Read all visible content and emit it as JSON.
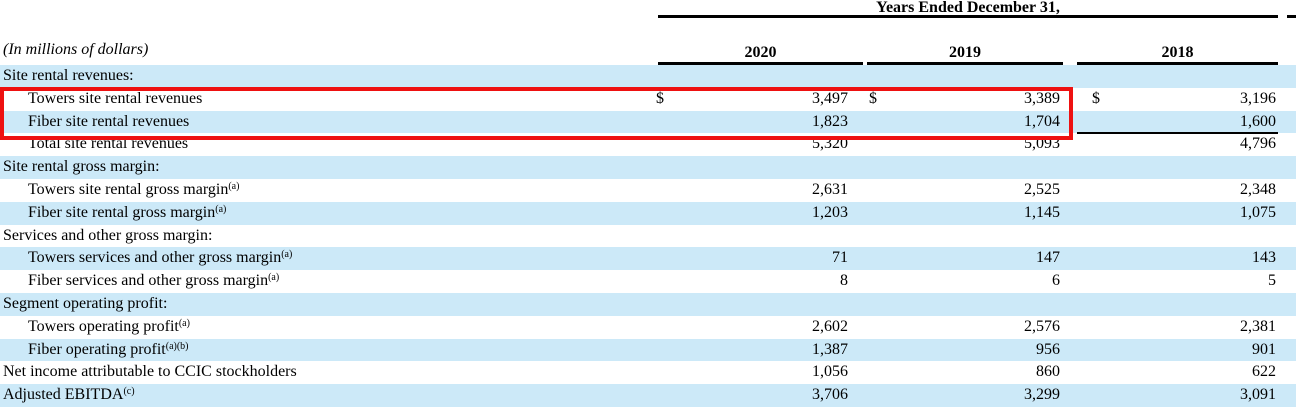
{
  "table": {
    "title": "Years Ended December 31,",
    "unit_note": "(In millions of dollars)",
    "columns": [
      "2020",
      "2019",
      "2018"
    ],
    "dollar_sign": "$",
    "rows": [
      {
        "label": "Site rental revenues:",
        "indent": false
      },
      {
        "label": "Towers site rental revenues",
        "indent": true,
        "dollar": true,
        "values": [
          "3,497",
          "3,389",
          "3,196"
        ]
      },
      {
        "label": "Fiber site rental revenues",
        "indent": true,
        "values": [
          "1,823",
          "1,704",
          "1,600"
        ]
      },
      {
        "label": "Total site rental revenues",
        "indent": true,
        "values": [
          "5,320",
          "5,093",
          "4,796"
        ],
        "rule_above_col3": true
      },
      {
        "label": "Site rental gross margin:",
        "indent": false
      },
      {
        "label": "Towers site rental gross margin",
        "sup": "(a)",
        "indent": true,
        "values": [
          "2,631",
          "2,525",
          "2,348"
        ]
      },
      {
        "label": "Fiber site rental gross margin",
        "sup": "(a)",
        "indent": true,
        "values": [
          "1,203",
          "1,145",
          "1,075"
        ]
      },
      {
        "label": "Services and other gross margin:",
        "indent": false
      },
      {
        "label": "Towers services and other gross margin",
        "sup": "(a)",
        "indent": true,
        "values": [
          "71",
          "147",
          "143"
        ]
      },
      {
        "label": "Fiber services and other gross margin",
        "sup": "(a)",
        "indent": true,
        "values": [
          "8",
          "6",
          "5"
        ]
      },
      {
        "label": "Segment operating profit:",
        "indent": false
      },
      {
        "label": "Towers operating profit",
        "sup": "(a)",
        "indent": true,
        "values": [
          "2,602",
          "2,576",
          "2,381"
        ]
      },
      {
        "label": "Fiber operating profit",
        "sup": "(a)(b)",
        "indent": true,
        "values": [
          "1,387",
          "956",
          "901"
        ]
      },
      {
        "label": "Net income attributable to CCIC stockholders",
        "indent": false,
        "values": [
          "1,056",
          "860",
          "622"
        ]
      },
      {
        "label": "Adjusted EBITDA",
        "sup": "(c)",
        "indent": false,
        "values": [
          "3,706",
          "3,299",
          "3,091"
        ]
      }
    ],
    "colors": {
      "row_stripe_blue": "#cce9f8",
      "highlight_red": "#ee1111",
      "rule_black": "#000000"
    }
  }
}
